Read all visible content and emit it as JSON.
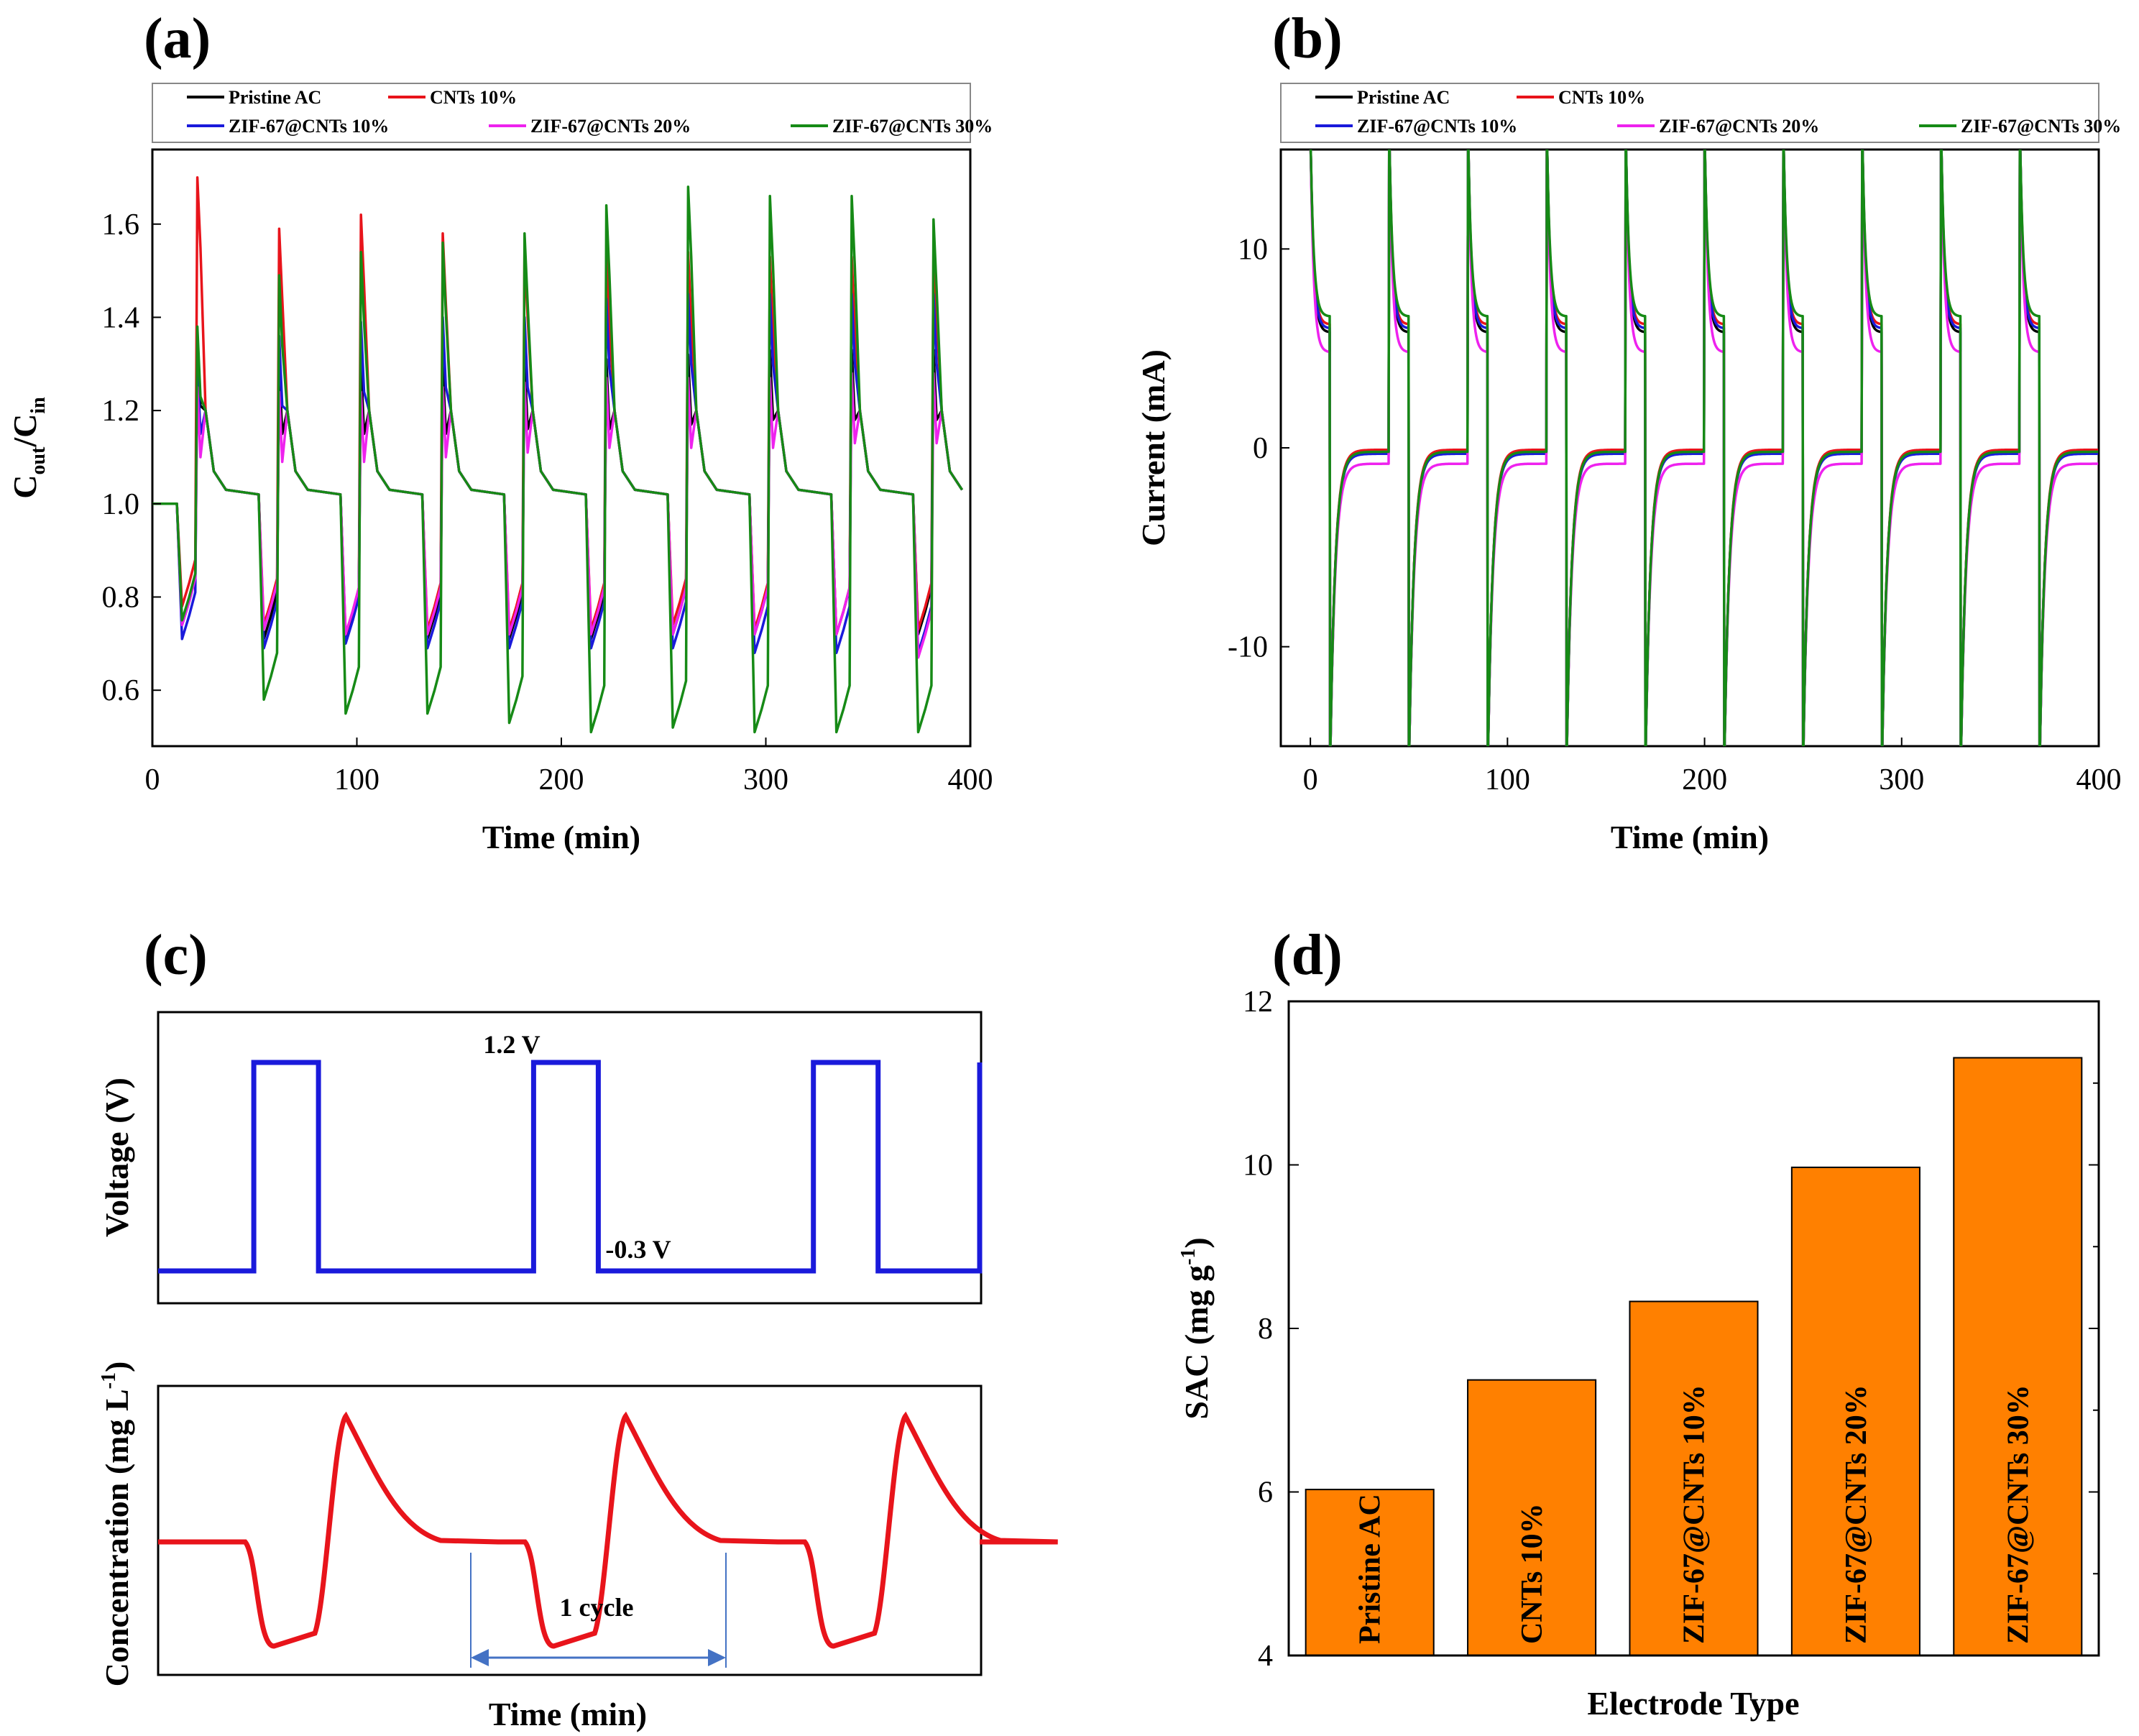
{
  "panels": {
    "a": {
      "letter": "(a)",
      "chart_data": {
        "type": "line",
        "title": "",
        "xlabel": "Time (min)",
        "ylabel_main": "C",
        "ylabel_sub1": "out",
        "ylabel_mid": "/C",
        "ylabel_sub2": "in",
        "xlim": [
          0,
          400
        ],
        "ylim": [
          0.48,
          1.76
        ],
        "xticks": [
          0,
          100,
          200,
          300,
          400
        ],
        "yticks": [
          0.6,
          0.8,
          1.0,
          1.2,
          1.4,
          1.6
        ],
        "ytick_labels": [
          "0.6",
          "0.8",
          "1.0",
          "1.2",
          "1.4",
          "1.6"
        ],
        "cycle_start": 12,
        "cycle_period": 40,
        "cycles": 10,
        "legend_location": "top",
        "series": [
          {
            "name": "Pristine AC",
            "color": "#000000",
            "mins": [
              0.74,
              0.71,
              0.71,
              0.71,
              0.71,
              0.71,
              0.72,
              0.72,
              0.72,
              0.72
            ],
            "peaks": [
              1.36,
              1.3,
              1.3,
              1.3,
              1.31,
              1.31,
              1.32,
              1.33,
              1.33,
              1.33
            ]
          },
          {
            "name": "CNTs 10%",
            "color": "#e8141b",
            "mins": [
              0.78,
              0.74,
              0.72,
              0.73,
              0.73,
              0.73,
              0.74,
              0.73,
              0.72,
              0.73
            ],
            "peaks": [
              1.7,
              1.59,
              1.62,
              1.58,
              1.55,
              1.53,
              1.54,
              1.53,
              1.53,
              1.55
            ]
          },
          {
            "name": "ZIF-67@CNTs 10%",
            "color": "#1a1adb",
            "mins": [
              0.71,
              0.69,
              0.7,
              0.69,
              0.69,
              0.69,
              0.69,
              0.68,
              0.68,
              0.68
            ],
            "peaks": [
              1.3,
              1.36,
              1.39,
              1.4,
              1.4,
              1.44,
              1.45,
              1.45,
              1.45,
              1.45
            ]
          },
          {
            "name": "ZIF-67@CNTs 20%",
            "color": "#ee22ee",
            "mins": [
              0.74,
              0.73,
              0.72,
              0.72,
              0.72,
              0.72,
              0.72,
              0.72,
              0.72,
              0.67
            ],
            "peaks": [
              1.25,
              1.24,
              1.24,
              1.25,
              1.26,
              1.27,
              1.27,
              1.27,
              1.28,
              1.28
            ]
          },
          {
            "name": "ZIF-67@CNTs 30%",
            "color": "#168a16",
            "mins": [
              0.75,
              0.58,
              0.55,
              0.55,
              0.53,
              0.51,
              0.52,
              0.51,
              0.51,
              0.51
            ],
            "peaks": [
              1.38,
              1.49,
              1.54,
              1.56,
              1.58,
              1.64,
              1.68,
              1.66,
              1.66,
              1.61
            ]
          }
        ]
      }
    },
    "b": {
      "letter": "(b)",
      "chart_data": {
        "type": "line",
        "title": "",
        "xlabel": "Time (min)",
        "ylabel": "Current (mA)",
        "xlim": [
          -15,
          400
        ],
        "ylim": [
          -15,
          15
        ],
        "xticks": [
          0,
          100,
          200,
          300,
          400
        ],
        "yticks": [
          -10,
          0,
          10
        ],
        "cycle_start": 0,
        "cycle_period": 40,
        "charge_duration": 10,
        "cycles": 10,
        "legend_location": "top",
        "series": [
          {
            "name": "Pristine AC",
            "color": "#000000",
            "charge_end": 5.8,
            "discharge_end": -0.2
          },
          {
            "name": "CNTs 10%",
            "color": "#e8141b",
            "charge_end": 6.2,
            "discharge_end": -0.1
          },
          {
            "name": "ZIF-67@CNTs 10%",
            "color": "#1a1adb",
            "charge_end": 6.0,
            "discharge_end": -0.3
          },
          {
            "name": "ZIF-67@CNTs 20%",
            "color": "#ee22ee",
            "charge_end": 4.8,
            "discharge_end": -0.8
          },
          {
            "name": "ZIF-67@CNTs 30%",
            "color": "#168a16",
            "charge_end": 6.6,
            "discharge_end": -0.2
          }
        ]
      }
    },
    "c": {
      "letter": "(c)",
      "chart_data": {
        "type": "line",
        "title": "",
        "xlabel": "Time (min)",
        "ylabel_top": "Voltage (V)",
        "ylabel_bottom": "Concentration (mg L",
        "ylabel_bottom_sup": "-1",
        "ylabel_bottom_end": ")",
        "voltage_high_label": "1.2 V",
        "voltage_low_label": "-0.3 V",
        "cycle_label": "1 cycle",
        "voltage_high": 1.2,
        "voltage_low": -0.3,
        "cycle_starts": [
          0.18,
          0.52,
          0.86
        ],
        "schematic": true
      }
    },
    "d": {
      "letter": "(d)",
      "chart_data": {
        "type": "bar",
        "title": "",
        "xlabel": "Electrode Type",
        "ylabel": "SAC (mg g",
        "ylabel_sup": "-1",
        "ylabel_end": ")",
        "ylim": [
          4,
          12
        ],
        "yticks": [
          4,
          6,
          8,
          10,
          12
        ],
        "categories": [
          "Pristine AC",
          "CNTs 10%",
          "ZIF-67@CNTs 10%",
          "ZIF-67@CNTs 20%",
          "ZIF-67@CNTs 30%"
        ],
        "values": [
          6.03,
          7.37,
          8.33,
          9.97,
          11.31
        ],
        "bar_color": "#ff8000"
      }
    }
  }
}
